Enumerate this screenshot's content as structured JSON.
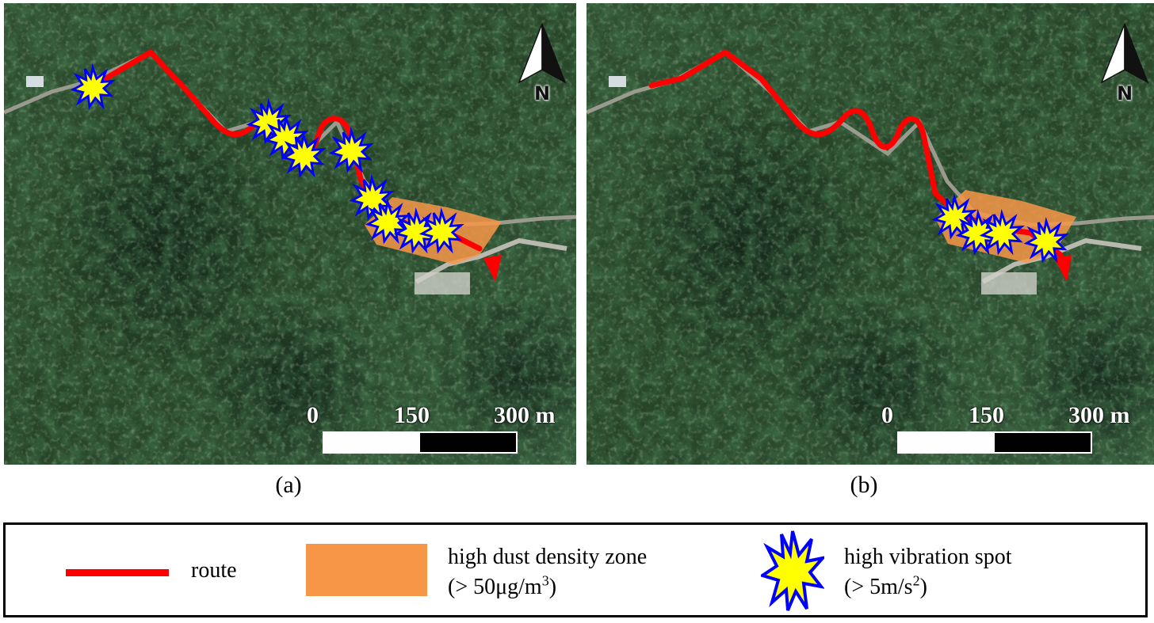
{
  "panels": [
    {
      "id": "a",
      "caption": "(a)",
      "north_label": "N",
      "scale": {
        "ticks": [
          "0",
          "150",
          "300 m"
        ]
      },
      "layers": [
        "route",
        "high dust density zone",
        "high vibration spots"
      ]
    },
    {
      "id": "b",
      "caption": "(b)",
      "north_label": "N",
      "scale": {
        "ticks": [
          "0",
          "150",
          "300 m"
        ]
      },
      "layers": [
        "route",
        "high dust density zone",
        "high vibration spots"
      ]
    }
  ],
  "legend": {
    "route_label": "route",
    "dust_label": "high dust density zone",
    "dust_threshold_prefix": "(> 50μg/m",
    "dust_threshold_exp": "3",
    "dust_threshold_suffix": ")",
    "vibration_label": "high vibration spot",
    "vibration_threshold_prefix": "(> 5m/s",
    "vibration_threshold_exp": "2",
    "vibration_threshold_suffix": ")"
  },
  "colors": {
    "route": "#ff0000",
    "dust_zone": "#f79646",
    "vibration_fill": "#ffff00",
    "vibration_stroke": "#0000ff",
    "forest": "#2c4a2f"
  },
  "icons": [
    "north-arrow-icon",
    "vibration-star-icon"
  ]
}
